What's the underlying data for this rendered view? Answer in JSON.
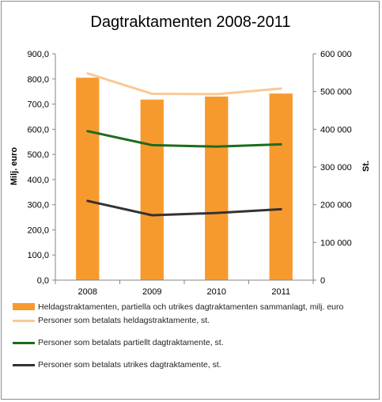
{
  "chart_data": {
    "type": "bar",
    "title": "Dagtraktamenten 2008-2011",
    "categories": [
      "2008",
      "2009",
      "2010",
      "2011"
    ],
    "ylabel_left": "Milj. euro",
    "ylabel_right": "St.",
    "ylim_left": [
      0,
      900
    ],
    "ylim_right": [
      0,
      600000
    ],
    "left_ticks": [
      "0,0",
      "100,0",
      "200,0",
      "300,0",
      "400,0",
      "500,0",
      "600,0",
      "700,0",
      "800,0",
      "900,0"
    ],
    "right_ticks": [
      "0",
      "100 000",
      "200 000",
      "300 000",
      "400 000",
      "500 000",
      "600 000"
    ],
    "bar_series": {
      "name": "Heldagstraktamenten, partiella och utrikes dagtraktamenten sammanlagt, milj. euro",
      "color": "#f79a2e",
      "values": [
        805,
        718,
        730,
        742
      ]
    },
    "line_series": [
      {
        "name": "Personer som betalats heldagstraktamente, st.",
        "color": "#fac995",
        "values": [
          548000,
          494000,
          493000,
          508000
        ]
      },
      {
        "name": "Personer som betalats partiellt dagtraktamente, st.",
        "color": "#1e6b1e",
        "values": [
          395000,
          358000,
          354000,
          360000
        ]
      },
      {
        "name": "Personer som betalats utrikes dagtraktamente, st.",
        "color": "#333333",
        "values": [
          210000,
          172000,
          178000,
          188000
        ]
      }
    ],
    "grid": false,
    "legend_position": "bottom"
  }
}
